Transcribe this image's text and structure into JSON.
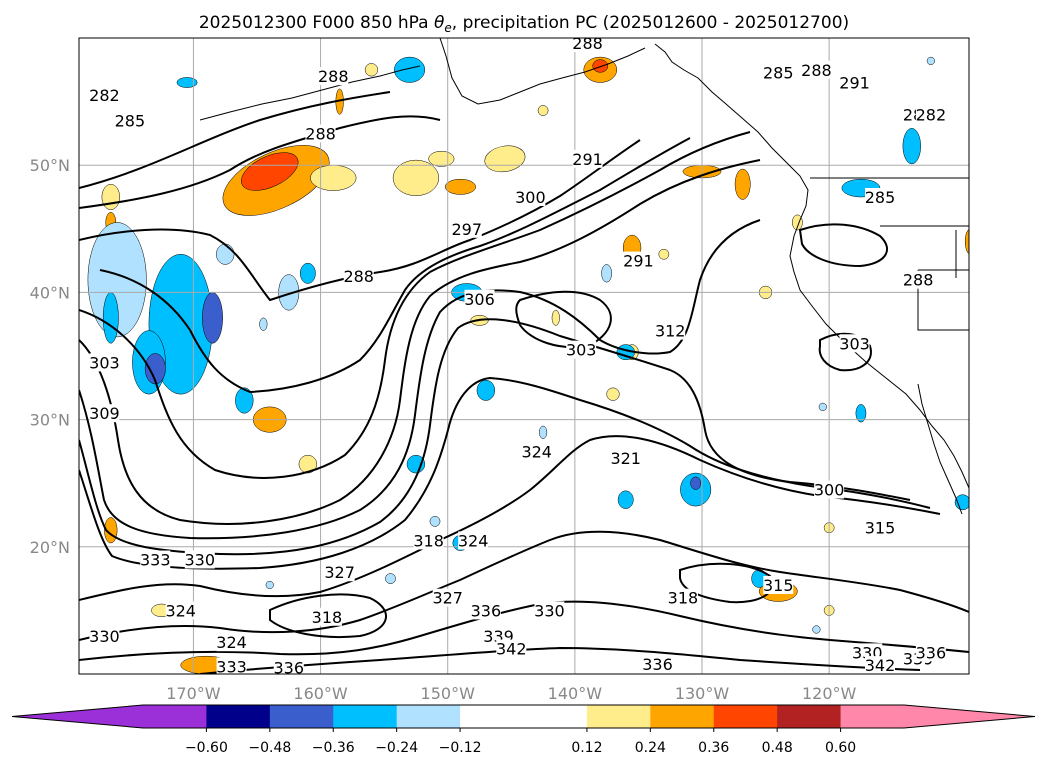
{
  "chart_data": {
    "type": "heatmap",
    "title": "2025012300 F000 850 hPa θe, precipitation PC (2025012600 - 2025012700)",
    "title_parts": {
      "prefix": "2025012300 F000 850 hPa ",
      "theta": "θ",
      "sub": "e",
      "suffix": ", precipitation PC (2025012600 - 2025012700)"
    },
    "map": {
      "lon_range": [
        -179,
        -109
      ],
      "lat_range": [
        10,
        60
      ],
      "grid": true,
      "xticks": [
        {
          "value": -170,
          "label": "170°W"
        },
        {
          "value": -160,
          "label": "160°W"
        },
        {
          "value": -150,
          "label": "150°W"
        },
        {
          "value": -140,
          "label": "140°W"
        },
        {
          "value": -130,
          "label": "130°W"
        },
        {
          "value": -120,
          "label": "120°W"
        }
      ],
      "yticks": [
        {
          "value": 50,
          "label": "50°N"
        },
        {
          "value": 40,
          "label": "40°N"
        },
        {
          "value": 30,
          "label": "30°N"
        },
        {
          "value": 20,
          "label": "20°N"
        }
      ]
    },
    "colorbar": {
      "orientation": "horizontal",
      "placement": "bottom",
      "extend": "both",
      "bounds": [
        -0.72,
        -0.6,
        -0.48,
        -0.36,
        -0.24,
        -0.12,
        0.12,
        0.24,
        0.36,
        0.48,
        0.6,
        0.72
      ],
      "colors": [
        "#9b30d9",
        "#00008b",
        "#3a5fcd",
        "#00bfff",
        "#b0e2ff",
        "#ffffff",
        "#ffec8b",
        "#ffa500",
        "#ff4500",
        "#b22222",
        "#ff88aa"
      ],
      "under_color": "#9b30d9",
      "over_color": "#ff88aa",
      "tick_labels": [
        {
          "value": -0.6,
          "label": "−0.60"
        },
        {
          "value": -0.48,
          "label": "−0.48"
        },
        {
          "value": -0.36,
          "label": "−0.36"
        },
        {
          "value": -0.24,
          "label": "−0.24"
        },
        {
          "value": -0.12,
          "label": "−0.12"
        },
        {
          "value": 0.12,
          "label": "0.12"
        },
        {
          "value": 0.24,
          "label": "0.24"
        },
        {
          "value": 0.36,
          "label": "0.36"
        },
        {
          "value": 0.48,
          "label": "0.48"
        },
        {
          "value": 0.6,
          "label": "0.60"
        }
      ]
    },
    "theta_e_contours": {
      "interval": 3,
      "color": "#000000",
      "labels": [
        {
          "lon": -159,
          "lat": 57,
          "label": "288"
        },
        {
          "lon": -177,
          "lat": 55.5,
          "label": "282"
        },
        {
          "lon": -175,
          "lat": 53.5,
          "label": "285"
        },
        {
          "lon": -160,
          "lat": 52.5,
          "label": "288"
        },
        {
          "lon": -139,
          "lat": 59.6,
          "label": "288"
        },
        {
          "lon": -124,
          "lat": 57.3,
          "label": "285"
        },
        {
          "lon": -121,
          "lat": 57.5,
          "label": "288"
        },
        {
          "lon": -118,
          "lat": 56.5,
          "label": "291"
        },
        {
          "lon": -113,
          "lat": 54,
          "label": "285"
        },
        {
          "lon": -112,
          "lat": 54,
          "label": "282"
        },
        {
          "lon": -139,
          "lat": 50.5,
          "label": "291"
        },
        {
          "lon": -143.5,
          "lat": 47.5,
          "label": "300"
        },
        {
          "lon": -148.5,
          "lat": 45,
          "label": "297"
        },
        {
          "lon": -157,
          "lat": 41.3,
          "label": "288"
        },
        {
          "lon": -147.5,
          "lat": 39.5,
          "label": "306"
        },
        {
          "lon": -135,
          "lat": 42.5,
          "label": "291"
        },
        {
          "lon": -139.5,
          "lat": 35.5,
          "label": "303"
        },
        {
          "lon": -132.5,
          "lat": 37,
          "label": "312"
        },
        {
          "lon": -116,
          "lat": 47.5,
          "label": "285"
        },
        {
          "lon": -113,
          "lat": 41,
          "label": "288"
        },
        {
          "lon": -118,
          "lat": 36,
          "label": "303"
        },
        {
          "lon": -177,
          "lat": 34.5,
          "label": "303"
        },
        {
          "lon": -177,
          "lat": 30.5,
          "label": "309"
        },
        {
          "lon": -136,
          "lat": 27,
          "label": "321"
        },
        {
          "lon": -143,
          "lat": 27.5,
          "label": "324"
        },
        {
          "lon": -120,
          "lat": 24.5,
          "label": "300"
        },
        {
          "lon": -116,
          "lat": 21.5,
          "label": "315"
        },
        {
          "lon": -173,
          "lat": 19,
          "label": "333"
        },
        {
          "lon": -169.5,
          "lat": 19,
          "label": "330"
        },
        {
          "lon": -148,
          "lat": 20.5,
          "label": "324"
        },
        {
          "lon": -151.5,
          "lat": 20.5,
          "label": "318"
        },
        {
          "lon": -158.5,
          "lat": 18,
          "label": "327"
        },
        {
          "lon": -150,
          "lat": 16,
          "label": "327"
        },
        {
          "lon": -159.5,
          "lat": 14.5,
          "label": "318"
        },
        {
          "lon": -171,
          "lat": 15,
          "label": "324"
        },
        {
          "lon": -177,
          "lat": 13,
          "label": "330"
        },
        {
          "lon": -131.5,
          "lat": 16,
          "label": "318"
        },
        {
          "lon": -124,
          "lat": 17,
          "label": "315"
        },
        {
          "lon": -142,
          "lat": 15,
          "label": "330"
        },
        {
          "lon": -147,
          "lat": 15,
          "label": "336"
        },
        {
          "lon": -146,
          "lat": 13,
          "label": "339"
        },
        {
          "lon": -145,
          "lat": 12,
          "label": "342"
        },
        {
          "lon": -167,
          "lat": 12.5,
          "label": "324"
        },
        {
          "lon": -167,
          "lat": 10.6,
          "label": "333"
        },
        {
          "lon": -162.5,
          "lat": 10.5,
          "label": "336"
        },
        {
          "lon": -133.5,
          "lat": 10.8,
          "label": "336"
        },
        {
          "lon": -117,
          "lat": 11.7,
          "label": "330"
        },
        {
          "lon": -116,
          "lat": 10.7,
          "label": "342"
        },
        {
          "lon": -113,
          "lat": 11.2,
          "label": "339"
        },
        {
          "lon": -112,
          "lat": 11.7,
          "label": "336"
        }
      ]
    },
    "precip_pc_patches": [
      {
        "lon": -163.5,
        "lat": 48.8,
        "rx": 4.5,
        "ry": 2.2,
        "value": 0.28,
        "rot": -25
      },
      {
        "lon": -164,
        "lat": 49.5,
        "rx": 2.4,
        "ry": 1.2,
        "value": 0.4,
        "rot": -25
      },
      {
        "lon": -159,
        "lat": 49,
        "rx": 1.8,
        "ry": 1.0,
        "value": 0.2,
        "rot": 0
      },
      {
        "lon": -152.5,
        "lat": 49,
        "rx": 1.8,
        "ry": 1.4,
        "value": 0.2,
        "rot": 0
      },
      {
        "lon": -149,
        "lat": 48.3,
        "rx": 1.2,
        "ry": 0.6,
        "value": 0.3,
        "rot": 0
      },
      {
        "lon": -145.5,
        "lat": 50.5,
        "rx": 1.6,
        "ry": 1.0,
        "value": 0.2,
        "rot": -10
      },
      {
        "lon": -150.5,
        "lat": 50.5,
        "rx": 1.0,
        "ry": 0.6,
        "value": 0.15,
        "rot": 0
      },
      {
        "lon": -138,
        "lat": 57.5,
        "rx": 1.3,
        "ry": 1.0,
        "value": 0.28,
        "rot": 0
      },
      {
        "lon": -138,
        "lat": 57.8,
        "rx": 0.6,
        "ry": 0.5,
        "value": 0.4,
        "rot": 0
      },
      {
        "lon": -142.5,
        "lat": 54.3,
        "rx": 0.4,
        "ry": 0.4,
        "value": 0.15,
        "rot": 0
      },
      {
        "lon": -130,
        "lat": 49.5,
        "rx": 1.5,
        "ry": 0.5,
        "value": 0.28,
        "rot": 0
      },
      {
        "lon": -126.8,
        "lat": 48.5,
        "rx": 0.6,
        "ry": 1.2,
        "value": 0.28,
        "rot": 0
      },
      {
        "lon": -108.9,
        "lat": 44,
        "rx": 0.4,
        "ry": 1.0,
        "value": 0.3,
        "rot": 0
      },
      {
        "lon": -176.5,
        "lat": 47.5,
        "rx": 0.7,
        "ry": 1.0,
        "value": 0.2,
        "rot": 0
      },
      {
        "lon": -176.5,
        "lat": 45.5,
        "rx": 0.4,
        "ry": 0.8,
        "value": 0.28,
        "rot": 0
      },
      {
        "lon": -135.5,
        "lat": 43.5,
        "rx": 0.7,
        "ry": 1.0,
        "value": 0.28,
        "rot": 0
      },
      {
        "lon": -164,
        "lat": 30,
        "rx": 1.3,
        "ry": 1.0,
        "value": 0.28,
        "rot": 0
      },
      {
        "lon": -161,
        "lat": 26.5,
        "rx": 0.7,
        "ry": 0.7,
        "value": 0.2,
        "rot": 0
      },
      {
        "lon": -176.5,
        "lat": 21.3,
        "rx": 0.5,
        "ry": 1.0,
        "value": 0.28,
        "rot": 0
      },
      {
        "lon": -172.5,
        "lat": 15,
        "rx": 0.8,
        "ry": 0.5,
        "value": 0.2,
        "rot": 0
      },
      {
        "lon": -169,
        "lat": 10.7,
        "rx": 2.0,
        "ry": 0.7,
        "value": 0.28,
        "rot": 0
      },
      {
        "lon": -124,
        "lat": 16.5,
        "rx": 1.5,
        "ry": 0.8,
        "value": 0.3,
        "rot": 0
      },
      {
        "lon": -135.5,
        "lat": 35.3,
        "rx": 0.5,
        "ry": 0.6,
        "value": 0.18,
        "rot": 0
      },
      {
        "lon": -147.5,
        "lat": 37.8,
        "rx": 0.7,
        "ry": 0.4,
        "value": 0.2,
        "rot": 0
      },
      {
        "lon": -141.5,
        "lat": 38,
        "rx": 0.3,
        "ry": 0.6,
        "value": 0.2,
        "rot": 0
      },
      {
        "lon": -133,
        "lat": 43,
        "rx": 0.4,
        "ry": 0.4,
        "value": 0.15,
        "rot": 0
      },
      {
        "lon": -125,
        "lat": 40,
        "rx": 0.5,
        "ry": 0.5,
        "value": 0.2,
        "rot": 0
      },
      {
        "lon": -120,
        "lat": 21.5,
        "rx": 0.4,
        "ry": 0.4,
        "value": 0.2,
        "rot": 0
      },
      {
        "lon": -120,
        "lat": 15,
        "rx": 0.4,
        "ry": 0.4,
        "value": 0.2,
        "rot": 0
      },
      {
        "lon": -137,
        "lat": 32,
        "rx": 0.5,
        "ry": 0.5,
        "value": 0.15,
        "rot": 0
      },
      {
        "lon": -156,
        "lat": 57.5,
        "rx": 0.5,
        "ry": 0.5,
        "value": 0.2,
        "rot": 0
      },
      {
        "lon": -158.5,
        "lat": 55,
        "rx": 0.3,
        "ry": 1.0,
        "value": 0.28,
        "rot": 0
      },
      {
        "lon": -122.5,
        "lat": 45.5,
        "rx": 0.4,
        "ry": 0.6,
        "value": 0.2,
        "rot": 0
      },
      {
        "lon": -176,
        "lat": 41,
        "rx": 2.3,
        "ry": 4.5,
        "value": -0.2,
        "rot": 0
      },
      {
        "lon": -171,
        "lat": 37.5,
        "rx": 2.5,
        "ry": 5.5,
        "value": -0.28,
        "rot": 0
      },
      {
        "lon": -173.5,
        "lat": 34.5,
        "rx": 1.3,
        "ry": 2.5,
        "value": -0.3,
        "rot": 0
      },
      {
        "lon": -168.5,
        "lat": 38,
        "rx": 0.8,
        "ry": 2.0,
        "value": -0.42,
        "rot": 0
      },
      {
        "lon": -173,
        "lat": 34,
        "rx": 0.8,
        "ry": 1.2,
        "value": -0.42,
        "rot": 0
      },
      {
        "lon": -176.5,
        "lat": 38,
        "rx": 0.6,
        "ry": 2.0,
        "value": -0.3,
        "rot": 0
      },
      {
        "lon": -167.5,
        "lat": 43,
        "rx": 0.7,
        "ry": 0.8,
        "value": -0.18,
        "rot": 0
      },
      {
        "lon": -166,
        "lat": 31.5,
        "rx": 0.7,
        "ry": 1.0,
        "value": -0.28,
        "rot": 0
      },
      {
        "lon": -162.5,
        "lat": 40,
        "rx": 0.8,
        "ry": 1.4,
        "value": -0.2,
        "rot": 0
      },
      {
        "lon": -161,
        "lat": 41.5,
        "rx": 0.6,
        "ry": 0.8,
        "value": -0.3,
        "rot": 0
      },
      {
        "lon": -164.5,
        "lat": 37.5,
        "rx": 0.3,
        "ry": 0.5,
        "value": -0.2,
        "rot": 0
      },
      {
        "lon": -170.5,
        "lat": 56.5,
        "rx": 0.8,
        "ry": 0.4,
        "value": -0.3,
        "rot": 0
      },
      {
        "lon": -153,
        "lat": 57.5,
        "rx": 1.2,
        "ry": 1.0,
        "value": -0.3,
        "rot": 0
      },
      {
        "lon": -148.5,
        "lat": 40,
        "rx": 1.2,
        "ry": 0.7,
        "value": -0.3,
        "rot": 0
      },
      {
        "lon": -137.5,
        "lat": 41.5,
        "rx": 0.4,
        "ry": 0.7,
        "value": -0.2,
        "rot": 0
      },
      {
        "lon": -136,
        "lat": 35.3,
        "rx": 0.7,
        "ry": 0.6,
        "value": -0.28,
        "rot": 0
      },
      {
        "lon": -147,
        "lat": 32.3,
        "rx": 0.7,
        "ry": 0.8,
        "value": -0.3,
        "rot": 0
      },
      {
        "lon": -152.5,
        "lat": 26.5,
        "rx": 0.7,
        "ry": 0.7,
        "value": -0.3,
        "rot": 0
      },
      {
        "lon": -142.5,
        "lat": 29,
        "rx": 0.3,
        "ry": 0.5,
        "value": -0.2,
        "rot": 0
      },
      {
        "lon": -130.5,
        "lat": 24.5,
        "rx": 1.2,
        "ry": 1.3,
        "value": -0.3,
        "rot": 0
      },
      {
        "lon": -130.5,
        "lat": 25,
        "rx": 0.4,
        "ry": 0.5,
        "value": -0.42,
        "rot": 0
      },
      {
        "lon": -136,
        "lat": 23.7,
        "rx": 0.6,
        "ry": 0.7,
        "value": -0.28,
        "rot": 0
      },
      {
        "lon": -149,
        "lat": 20.3,
        "rx": 0.6,
        "ry": 0.6,
        "value": -0.3,
        "rot": 0
      },
      {
        "lon": -151,
        "lat": 22,
        "rx": 0.4,
        "ry": 0.4,
        "value": -0.2,
        "rot": 0
      },
      {
        "lon": -154.5,
        "lat": 17.5,
        "rx": 0.4,
        "ry": 0.4,
        "value": -0.2,
        "rot": 0
      },
      {
        "lon": -164,
        "lat": 17,
        "rx": 0.3,
        "ry": 0.3,
        "value": -0.2,
        "rot": 0
      },
      {
        "lon": -125.5,
        "lat": 17.5,
        "rx": 0.6,
        "ry": 0.7,
        "value": -0.3,
        "rot": 0
      },
      {
        "lon": -117.5,
        "lat": 48.2,
        "rx": 1.5,
        "ry": 0.7,
        "value": -0.3,
        "rot": 0
      },
      {
        "lon": -113.5,
        "lat": 51.5,
        "rx": 0.7,
        "ry": 1.4,
        "value": -0.3,
        "rot": 0
      },
      {
        "lon": -117.5,
        "lat": 30.5,
        "rx": 0.4,
        "ry": 0.7,
        "value": -0.28,
        "rot": 0
      },
      {
        "lon": -120.5,
        "lat": 31,
        "rx": 0.3,
        "ry": 0.3,
        "value": -0.2,
        "rot": 0
      },
      {
        "lon": -109.5,
        "lat": 23.5,
        "rx": 0.6,
        "ry": 0.6,
        "value": -0.3,
        "rot": 0
      },
      {
        "lon": -112,
        "lat": 58.2,
        "rx": 0.3,
        "ry": 0.3,
        "value": -0.2,
        "rot": 0
      },
      {
        "lon": -121,
        "lat": 13.5,
        "rx": 0.3,
        "ry": 0.3,
        "value": -0.2,
        "rot": 0
      }
    ]
  }
}
